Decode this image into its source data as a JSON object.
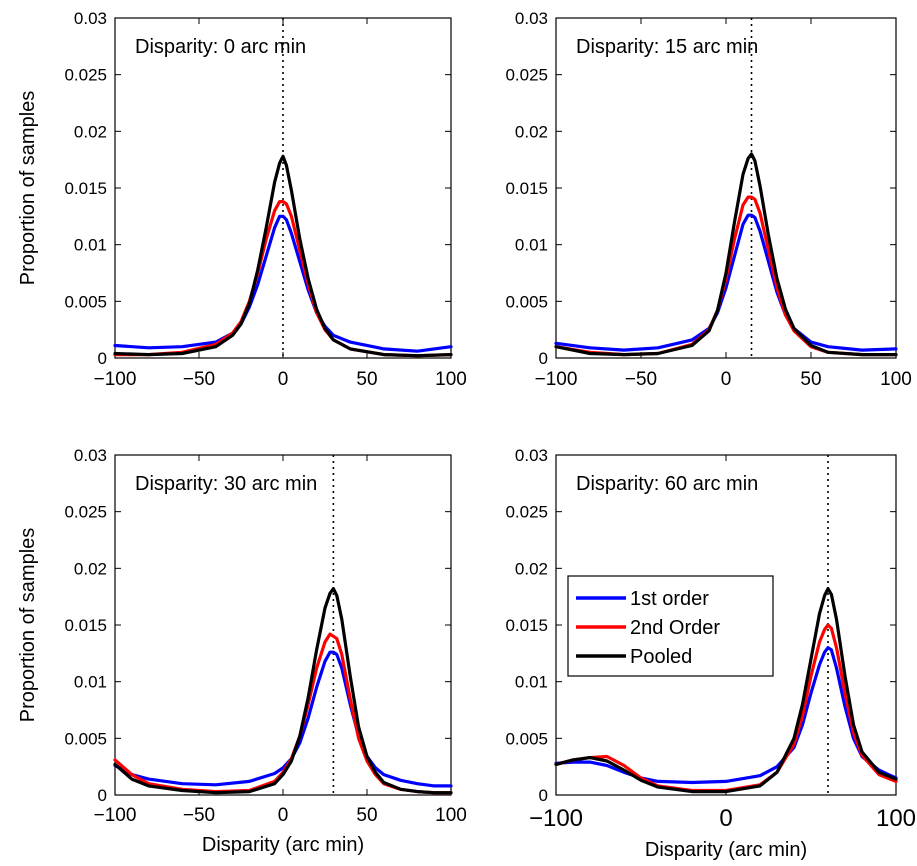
{
  "chart_data": [
    {
      "type": "line",
      "title": "Disparity: 0 arc min",
      "xlabel": "",
      "ylabel": "Proportion of samples",
      "xlim": [
        -100,
        100
      ],
      "ylim": [
        0,
        0.03
      ],
      "xticks": [
        "−100",
        "−50",
        "0",
        "50",
        "100"
      ],
      "yticks": [
        "0",
        "0.005",
        "0.01",
        "0.015",
        "0.02",
        "0.025",
        "0.03"
      ],
      "reference_line_x": 0,
      "x": [
        -100,
        -80,
        -60,
        -40,
        -30,
        -25,
        -20,
        -15,
        -10,
        -5,
        -2,
        0,
        2,
        5,
        10,
        15,
        20,
        25,
        30,
        40,
        60,
        80,
        100
      ],
      "series": [
        {
          "name": "1st order",
          "color": "#0000ff",
          "values": [
            0.0011,
            0.0009,
            0.001,
            0.0014,
            0.0022,
            0.003,
            0.0045,
            0.0065,
            0.009,
            0.0115,
            0.0125,
            0.0125,
            0.0122,
            0.011,
            0.0085,
            0.006,
            0.004,
            0.0028,
            0.002,
            0.0014,
            0.0008,
            0.0006,
            0.001
          ]
        },
        {
          "name": "2nd Order",
          "color": "#ff0000",
          "values": [
            0.0003,
            0.0003,
            0.0005,
            0.0012,
            0.0022,
            0.0032,
            0.005,
            0.0075,
            0.0105,
            0.013,
            0.0138,
            0.0138,
            0.0136,
            0.0125,
            0.0095,
            0.0065,
            0.004,
            0.0025,
            0.0016,
            0.0008,
            0.0003,
            0.0002,
            0.0003
          ]
        },
        {
          "name": "Pooled",
          "color": "#000000",
          "values": [
            0.0004,
            0.0003,
            0.0004,
            0.001,
            0.002,
            0.003,
            0.0048,
            0.0078,
            0.0115,
            0.0155,
            0.0172,
            0.0178,
            0.017,
            0.0148,
            0.0105,
            0.007,
            0.0043,
            0.0026,
            0.0016,
            0.0008,
            0.0003,
            0.0002,
            0.0003
          ]
        }
      ]
    },
    {
      "type": "line",
      "title": "Disparity: 15 arc min",
      "xlabel": "",
      "ylabel": "",
      "xlim": [
        -100,
        100
      ],
      "ylim": [
        0,
        0.03
      ],
      "xticks": [
        "−100",
        "−50",
        "0",
        "50",
        "100"
      ],
      "yticks": [
        "0",
        "0.005",
        "0.01",
        "0.015",
        "0.02",
        "0.025",
        "0.03"
      ],
      "reference_line_x": 15,
      "x": [
        -100,
        -80,
        -60,
        -40,
        -20,
        -10,
        -5,
        0,
        5,
        10,
        13,
        15,
        17,
        20,
        25,
        30,
        35,
        40,
        50,
        60,
        80,
        100
      ],
      "series": [
        {
          "name": "1st order",
          "color": "#0000ff",
          "values": [
            0.0013,
            0.0009,
            0.0007,
            0.0009,
            0.0016,
            0.0026,
            0.004,
            0.0062,
            0.009,
            0.0118,
            0.0126,
            0.0126,
            0.0124,
            0.0112,
            0.0085,
            0.0058,
            0.0038,
            0.0026,
            0.0014,
            0.001,
            0.0007,
            0.0008
          ]
        },
        {
          "name": "2nd Order",
          "color": "#ff0000",
          "values": [
            0.001,
            0.0005,
            0.0003,
            0.0004,
            0.0012,
            0.0025,
            0.0042,
            0.007,
            0.0105,
            0.0135,
            0.0142,
            0.0142,
            0.014,
            0.0128,
            0.0095,
            0.0062,
            0.0038,
            0.0024,
            0.001,
            0.0005,
            0.0003,
            0.0003
          ]
        },
        {
          "name": "Pooled",
          "color": "#000000",
          "values": [
            0.001,
            0.0004,
            0.0003,
            0.0004,
            0.0011,
            0.0024,
            0.0042,
            0.0075,
            0.012,
            0.0162,
            0.0176,
            0.018,
            0.0174,
            0.0152,
            0.0108,
            0.007,
            0.0043,
            0.0026,
            0.0011,
            0.0005,
            0.0003,
            0.0003
          ]
        }
      ]
    },
    {
      "type": "line",
      "title": "Disparity: 30 arc min",
      "xlabel": "Disparity (arc min)",
      "ylabel": "Proportion of samples",
      "xlim": [
        -100,
        100
      ],
      "ylim": [
        0,
        0.03
      ],
      "xticks": [
        "−100",
        "−50",
        "0",
        "50",
        "100"
      ],
      "yticks": [
        "0",
        "0.005",
        "0.01",
        "0.015",
        "0.02",
        "0.025",
        "0.03"
      ],
      "reference_line_x": 30,
      "x": [
        -100,
        -90,
        -80,
        -60,
        -40,
        -20,
        -5,
        0,
        5,
        10,
        15,
        20,
        25,
        28,
        30,
        32,
        35,
        40,
        45,
        50,
        55,
        60,
        70,
        80,
        90,
        100
      ],
      "series": [
        {
          "name": "1st order",
          "color": "#0000ff",
          "values": [
            0.0026,
            0.0018,
            0.0014,
            0.001,
            0.0009,
            0.0012,
            0.0019,
            0.0024,
            0.0032,
            0.0046,
            0.0068,
            0.0095,
            0.0118,
            0.0126,
            0.0126,
            0.0124,
            0.0112,
            0.008,
            0.0052,
            0.0034,
            0.0024,
            0.0018,
            0.0013,
            0.001,
            0.0008,
            0.0008
          ]
        },
        {
          "name": "2nd Order",
          "color": "#ff0000",
          "values": [
            0.0031,
            0.0018,
            0.001,
            0.0005,
            0.0003,
            0.0004,
            0.0012,
            0.002,
            0.0032,
            0.0052,
            0.008,
            0.0112,
            0.0135,
            0.0142,
            0.014,
            0.0138,
            0.0124,
            0.0085,
            0.005,
            0.003,
            0.0018,
            0.001,
            0.0005,
            0.0003,
            0.0002,
            0.0002
          ]
        },
        {
          "name": "Pooled",
          "color": "#000000",
          "values": [
            0.0027,
            0.0014,
            0.0008,
            0.0004,
            0.0002,
            0.0003,
            0.001,
            0.0018,
            0.003,
            0.0052,
            0.0086,
            0.0128,
            0.0165,
            0.0178,
            0.0182,
            0.0176,
            0.0155,
            0.0105,
            0.006,
            0.0034,
            0.002,
            0.0011,
            0.0005,
            0.0003,
            0.0002,
            0.0002
          ]
        }
      ]
    },
    {
      "type": "line",
      "title": "Disparity: 60 arc min",
      "xlabel": "Disparity (arc min)",
      "ylabel": "",
      "xlim": [
        -100,
        100
      ],
      "ylim": [
        0,
        0.03
      ],
      "xticks": [
        "−100",
        "0",
        "100"
      ],
      "yticks": [
        "0",
        "0.005",
        "0.01",
        "0.015",
        "0.02",
        "0.025",
        "0.03"
      ],
      "reference_line_x": 60,
      "legend": {
        "placement": "center-left",
        "entries": [
          "1st order",
          "2nd Order",
          "Pooled"
        ]
      },
      "x": [
        -100,
        -90,
        -80,
        -70,
        -60,
        -50,
        -40,
        -20,
        0,
        20,
        30,
        40,
        45,
        50,
        55,
        58,
        60,
        62,
        65,
        70,
        75,
        80,
        90,
        100
      ],
      "series": [
        {
          "name": "1st order",
          "color": "#0000ff",
          "values": [
            0.0028,
            0.0029,
            0.0029,
            0.0026,
            0.002,
            0.0015,
            0.0012,
            0.0011,
            0.0012,
            0.0017,
            0.0025,
            0.0042,
            0.0062,
            0.009,
            0.0115,
            0.0126,
            0.013,
            0.0128,
            0.0112,
            0.0078,
            0.005,
            0.0034,
            0.0022,
            0.0015
          ]
        },
        {
          "name": "2nd Order",
          "color": "#ff0000",
          "values": [
            0.0027,
            0.0031,
            0.0033,
            0.0034,
            0.0026,
            0.0015,
            0.0008,
            0.0004,
            0.0004,
            0.0009,
            0.002,
            0.0045,
            0.007,
            0.0105,
            0.0135,
            0.0146,
            0.015,
            0.0147,
            0.013,
            0.009,
            0.0055,
            0.0035,
            0.0018,
            0.0012
          ]
        },
        {
          "name": "Pooled",
          "color": "#000000",
          "values": [
            0.0027,
            0.0031,
            0.0033,
            0.003,
            0.0022,
            0.0013,
            0.0007,
            0.0003,
            0.0003,
            0.0008,
            0.002,
            0.005,
            0.008,
            0.012,
            0.016,
            0.0176,
            0.0182,
            0.0177,
            0.0155,
            0.0105,
            0.0062,
            0.0038,
            0.002,
            0.0014
          ]
        }
      ]
    }
  ]
}
